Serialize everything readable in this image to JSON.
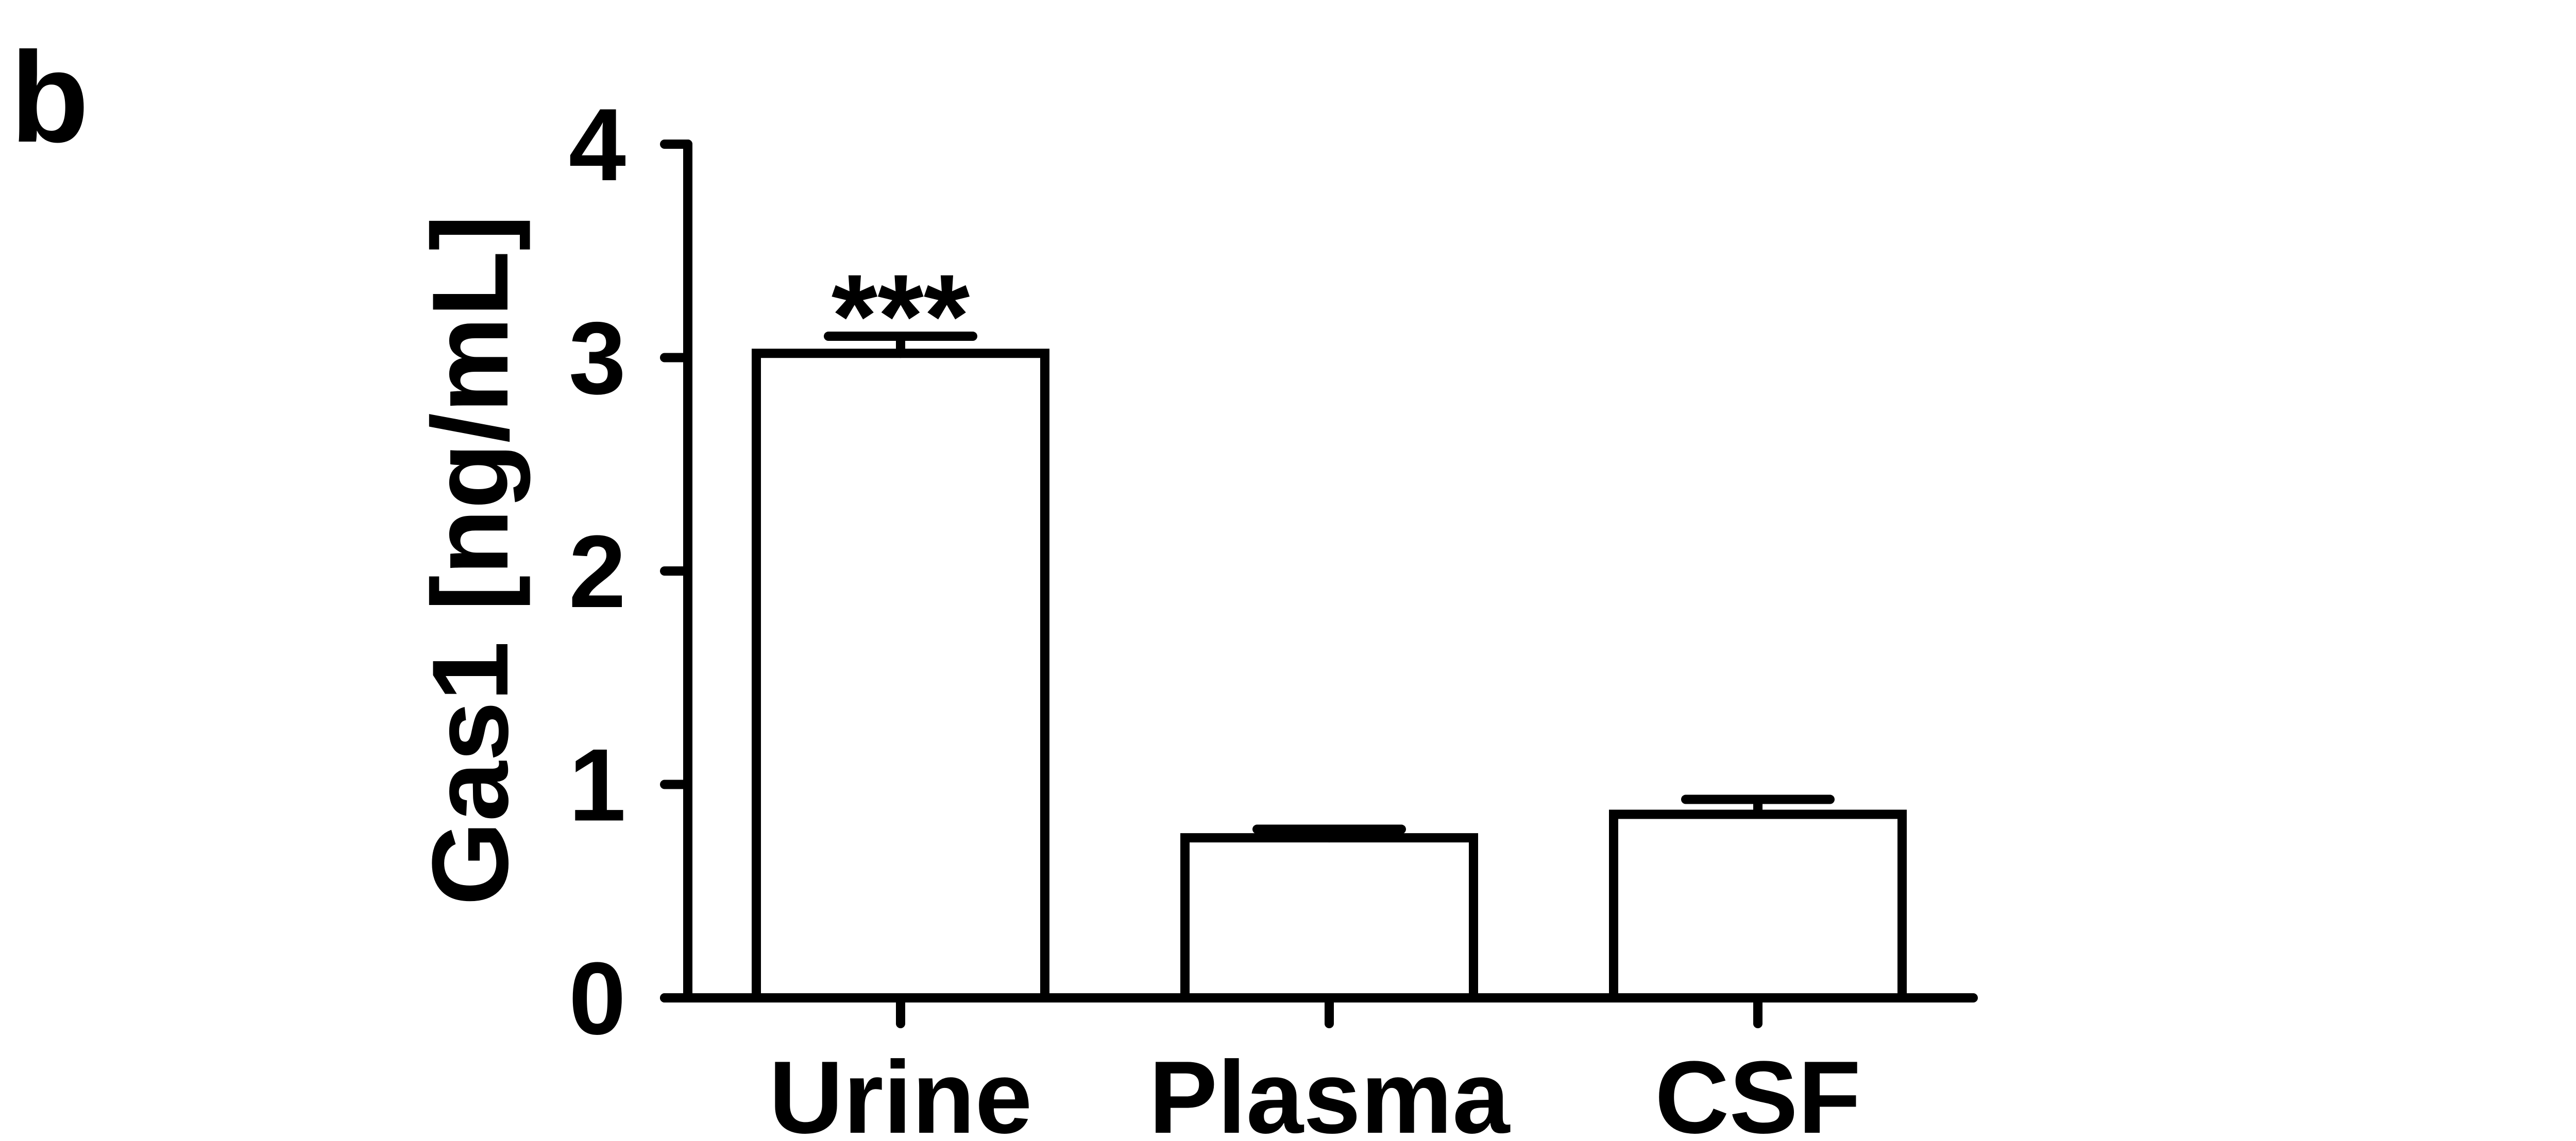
{
  "panel_label": "b",
  "chart_data": {
    "type": "bar",
    "title": "",
    "xlabel": "",
    "ylabel": "Gas1 [ng/mL]",
    "categories": [
      "Urine",
      "Plasma",
      "CSF"
    ],
    "values": [
      3.02,
      0.75,
      0.86
    ],
    "errors": [
      0.08,
      0.04,
      0.07
    ],
    "annotations": [
      {
        "category": "Urine",
        "text": "***"
      }
    ],
    "ylim": [
      0,
      4
    ],
    "yticks": [
      "0",
      "1",
      "2",
      "3",
      "4"
    ],
    "grid": false,
    "legend": "none",
    "bar_fill": "#ffffff",
    "bar_edge": "#000000"
  }
}
